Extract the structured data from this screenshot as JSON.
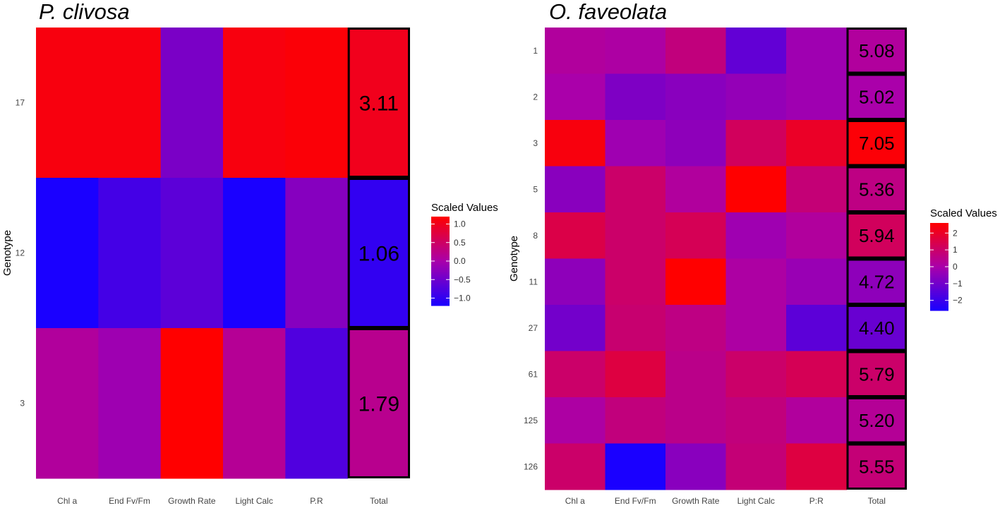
{
  "chart_data": [
    {
      "type": "heatmap",
      "title": "P. clivosa",
      "ylabel": "Genotype",
      "xlabel": "",
      "columns": [
        "Chl a",
        "End Fv/Fm",
        "Growth Rate",
        "Light Calc",
        "P.R"
      ],
      "total_label": "Total",
      "rows": [
        "17",
        "12",
        "3"
      ],
      "values": [
        [
          1.1,
          1.1,
          -0.4,
          1.1,
          1.15
        ],
        [
          -1.2,
          -0.85,
          -0.65,
          -1.2,
          -0.3
        ],
        [
          0.1,
          -0.1,
          1.2,
          0.15,
          -0.75
        ]
      ],
      "totals": [
        3.11,
        1.06,
        1.79
      ],
      "total_colors": [
        1.0,
        -1.0,
        0.2
      ],
      "legend": {
        "title": "Scaled Values",
        "ticks": [
          1.0,
          0.5,
          0.0,
          -0.5,
          -1.0
        ],
        "tick_labels": [
          "1.0",
          "0.5",
          "0.0",
          "−0.5",
          "−1.0"
        ],
        "range": [
          -1.2,
          1.2
        ]
      }
    },
    {
      "type": "heatmap",
      "title": "O. faveolata",
      "ylabel": "Genotype",
      "xlabel": "",
      "columns": [
        "Chl a",
        "End Fv/Fm",
        "Growth Rate",
        "Light Calc",
        "P:R"
      ],
      "total_label": "Total",
      "rows": [
        "1",
        "2",
        "3",
        "5",
        "8",
        "11",
        "27",
        "61",
        "125",
        "126"
      ],
      "values": [
        [
          0.2,
          0.1,
          0.7,
          -1.3,
          -0.2
        ],
        [
          0.0,
          -0.8,
          -0.6,
          -0.4,
          -0.2
        ],
        [
          2.4,
          -0.2,
          -0.5,
          1.2,
          2.0
        ],
        [
          -0.6,
          1.0,
          0.2,
          2.6,
          0.8
        ],
        [
          1.5,
          1.0,
          1.3,
          -0.2,
          0.2
        ],
        [
          -0.5,
          1.0,
          2.6,
          0.1,
          -0.3
        ],
        [
          -1.0,
          0.9,
          0.6,
          0.1,
          -1.4
        ],
        [
          1.0,
          1.6,
          0.5,
          1.0,
          1.3
        ],
        [
          0.1,
          0.7,
          0.5,
          0.7,
          0.2
        ],
        [
          1.0,
          -2.6,
          -0.6,
          0.8,
          1.6
        ]
      ],
      "totals": [
        "5.08",
        "5.02",
        "7.05",
        "5.36",
        "5.94",
        "4.72",
        "4.40",
        "5.79",
        "5.20",
        "5.55"
      ],
      "total_colors": [
        0.2,
        0.0,
        2.5,
        0.6,
        1.2,
        -0.5,
        -1.2,
        1.0,
        0.3,
        0.8
      ],
      "legend": {
        "title": "Scaled Values",
        "ticks": [
          2,
          1,
          0,
          -1,
          -2
        ],
        "tick_labels": [
          "2",
          "1",
          "0",
          "−1",
          "−2"
        ],
        "range": [
          -2.6,
          2.6
        ]
      }
    }
  ],
  "colors": {
    "low": "#1a00ff",
    "mid": "#aa00aa",
    "high": "#ff0000"
  }
}
